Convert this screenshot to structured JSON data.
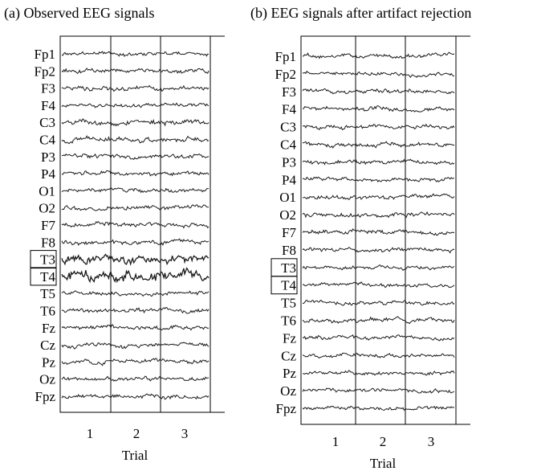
{
  "chart_data": [
    {
      "type": "line",
      "title": "(a) Observed EEG signals",
      "channels": [
        "Fp1",
        "Fp2",
        "F3",
        "F4",
        "C3",
        "C4",
        "P3",
        "P4",
        "O1",
        "O2",
        "F7",
        "F8",
        "T3",
        "T4",
        "T5",
        "T6",
        "Fz",
        "Cz",
        "Pz",
        "Oz",
        "Fpz"
      ],
      "highlighted_channels": [
        "T3",
        "T4"
      ],
      "x_ticks": [
        "1",
        "2",
        "3"
      ],
      "xlabel": "Trial",
      "ylabel": "",
      "grid": false,
      "trial_separators": true,
      "channel_amplitude": [
        0.75,
        0.8,
        0.85,
        0.8,
        1.0,
        1.0,
        0.85,
        0.85,
        0.85,
        0.9,
        0.9,
        0.85,
        1.7,
        2.0,
        0.8,
        0.85,
        0.85,
        0.85,
        0.85,
        0.8,
        0.75
      ]
    },
    {
      "type": "line",
      "title": "(b) EEG signals after artifact rejection",
      "channels": [
        "Fp1",
        "Fp2",
        "F3",
        "F4",
        "C3",
        "C4",
        "P3",
        "P4",
        "O1",
        "O2",
        "F7",
        "F8",
        "T3",
        "T4",
        "T5",
        "T6",
        "Fz",
        "Cz",
        "Pz",
        "Oz",
        "Fpz"
      ],
      "highlighted_channels": [
        "T3",
        "T4"
      ],
      "x_ticks": [
        "1",
        "2",
        "3"
      ],
      "xlabel": "Trial",
      "ylabel": "",
      "grid": false,
      "trial_separators": true,
      "channel_amplitude": [
        0.75,
        0.75,
        0.8,
        0.8,
        0.85,
        0.85,
        0.8,
        0.8,
        0.85,
        0.85,
        0.85,
        0.8,
        0.75,
        0.75,
        0.8,
        0.8,
        0.8,
        0.8,
        0.8,
        0.75,
        0.75
      ]
    }
  ],
  "style": {
    "trace_color": "#1a1a1a",
    "axis_color": "#000000"
  }
}
